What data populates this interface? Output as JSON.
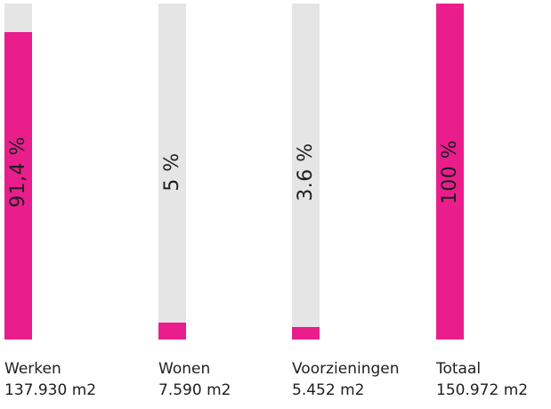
{
  "colors": {
    "fill": "#e91e8c",
    "track": "#e5e5e6",
    "text": "#1e1e1e"
  },
  "chart_data": {
    "type": "bar",
    "orientation": "vertical",
    "ylim": [
      0,
      100
    ],
    "categories": [
      "Werken",
      "Wonen",
      "Voorzieningen",
      "Totaal"
    ],
    "bars": [
      {
        "label": "Werken",
        "area": "137.930 m2",
        "percent_label": "91,4 %",
        "value": 91.4
      },
      {
        "label": "Wonen",
        "area": "7.590 m2",
        "percent_label": "5 %",
        "value": 5
      },
      {
        "label": "Voorzieningen",
        "area": "5.452 m2",
        "percent_label": "3.6 %",
        "value": 3.6
      },
      {
        "label": "Totaal",
        "area": "150.972 m2",
        "percent_label": "100 %",
        "value": 100
      }
    ]
  }
}
